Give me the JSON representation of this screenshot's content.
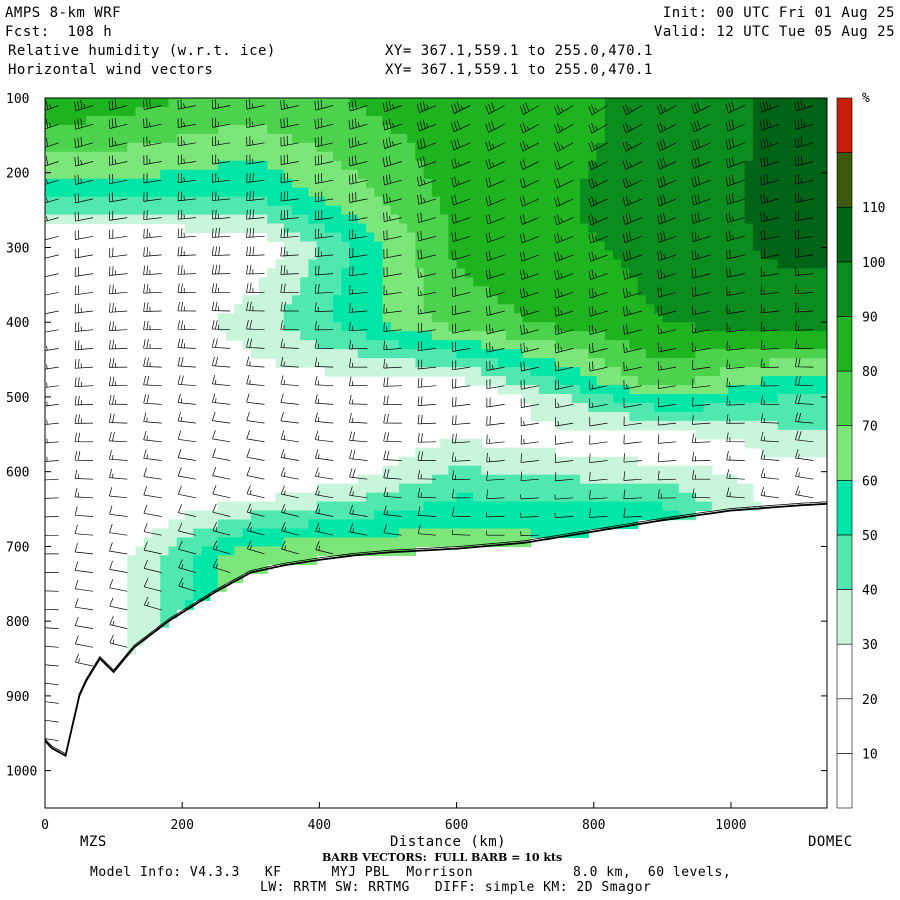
{
  "header": {
    "model_line": "AMPS 8-km WRF",
    "forecast_line": "Fcst:  108 h",
    "init_line": "Init: 00 UTC Fri 01 Aug 25",
    "valid_line": "Valid: 12 UTC Tue 05 Aug 25",
    "field1_label": "Relative humidity (w.r.t. ice)",
    "field2_label": "Horizontal wind vectors",
    "xy1": "XY= 367.1,559.1 to 255.0,470.1",
    "xy2": "XY= 367.1,559.1 to 255.0,470.1"
  },
  "footer": {
    "barb_note": "BARB VECTORS:  FULL BARB = 10 kts",
    "model_info": "Model Info: V4.3.3   KF      MYJ PBL  Morrison            8.0 km,  60 levels,",
    "physics_info": "LW: RRTM SW: RRTMG   DIFF: simple KM: 2D Smagor"
  },
  "chart_data": {
    "type": "heatmap",
    "title": "Relative humidity (w.r.t. ice)",
    "overlay": "Horizontal wind vectors (wind barbs)",
    "xlabel": "Distance (km)",
    "ylabel": "",
    "x_range_km": [
      0,
      1140
    ],
    "y_range_hpa": [
      1050,
      100
    ],
    "x_ticks": [
      0,
      200,
      400,
      600,
      800,
      1000
    ],
    "y_ticks": [
      100,
      200,
      300,
      400,
      500,
      600,
      700,
      800,
      900,
      1000
    ],
    "x_endpoint_labels": {
      "left": "MZS",
      "right": "DOMEC"
    },
    "colorbar": {
      "unit": "%",
      "levels": [
        10,
        20,
        30,
        40,
        50,
        60,
        70,
        80,
        90,
        100,
        110
      ],
      "colors": [
        "#ffffff",
        "#ffffff",
        "#ffffff",
        "#c8f5dc",
        "#50e8b0",
        "#00e6a8",
        "#7ce67a",
        "#4cd24c",
        "#1fb41f",
        "#0a8c1e",
        "#006416",
        "#3c5a0a",
        "#c81e0a"
      ]
    },
    "terrain_pressure_hpa": [
      [
        0,
        960
      ],
      [
        10,
        970
      ],
      [
        30,
        980
      ],
      [
        50,
        900
      ],
      [
        60,
        880
      ],
      [
        80,
        850
      ],
      [
        100,
        868
      ],
      [
        130,
        835
      ],
      [
        180,
        800
      ],
      [
        250,
        760
      ],
      [
        300,
        735
      ],
      [
        350,
        725
      ],
      [
        400,
        718
      ],
      [
        450,
        712
      ],
      [
        500,
        708
      ],
      [
        600,
        703
      ],
      [
        700,
        695
      ],
      [
        800,
        680
      ],
      [
        900,
        665
      ],
      [
        1000,
        652
      ],
      [
        1100,
        645
      ],
      [
        1140,
        643
      ]
    ],
    "rh_profile_samples": [
      {
        "x_km": 50,
        "levels": [
          {
            "p": 110,
            "rh": 85
          },
          {
            "p": 200,
            "rh": 65
          },
          {
            "p": 300,
            "rh": 15
          },
          {
            "p": 500,
            "rh": 10
          },
          {
            "p": 800,
            "rh": 15
          }
        ]
      },
      {
        "x_km": 300,
        "levels": [
          {
            "p": 110,
            "rh": 75
          },
          {
            "p": 230,
            "rh": 50
          },
          {
            "p": 300,
            "rh": 20
          },
          {
            "p": 400,
            "rh": 35
          },
          {
            "p": 600,
            "rh": 10
          },
          {
            "p": 715,
            "rh": 70
          }
        ]
      },
      {
        "x_km": 600,
        "levels": [
          {
            "p": 150,
            "rh": 85
          },
          {
            "p": 300,
            "rh": 82
          },
          {
            "p": 400,
            "rh": 75
          },
          {
            "p": 500,
            "rh": 15
          },
          {
            "p": 690,
            "rh": 65
          }
        ]
      },
      {
        "x_km": 900,
        "levels": [
          {
            "p": 150,
            "rh": 92
          },
          {
            "p": 250,
            "rh": 95
          },
          {
            "p": 400,
            "rh": 90
          },
          {
            "p": 480,
            "rh": 75
          },
          {
            "p": 560,
            "rh": 20
          },
          {
            "p": 660,
            "rh": 55
          }
        ]
      },
      {
        "x_km": 1080,
        "levels": [
          {
            "p": 200,
            "rh": 103
          },
          {
            "p": 300,
            "rh": 102
          },
          {
            "p": 400,
            "rh": 96
          },
          {
            "p": 480,
            "rh": 55
          },
          {
            "p": 600,
            "rh": 25
          }
        ]
      }
    ],
    "barbs": {
      "unit": "kts",
      "full_barb_kts": 10,
      "column_spacing_km": 50,
      "level_spacing_hpa": 25,
      "approx_speed_upper_kts": 30,
      "approx_speed_lower_kts": 10
    }
  }
}
